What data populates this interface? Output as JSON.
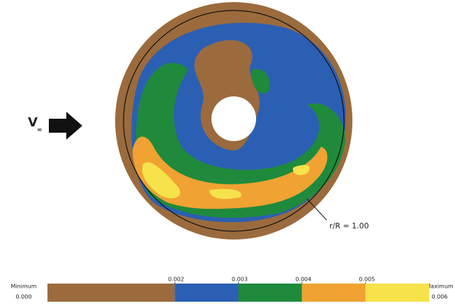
{
  "chart_data": {
    "type": "colorbar",
    "freestream_label": "V",
    "freestream_subscript": "∞",
    "annotation": "r/R = 1.00",
    "min_title": "Minimum",
    "max_title": "Maximum",
    "xlim": [
      {
        "value": 0,
        "label": "0.000"
      },
      0.006
    ],
    "xticks": [
      0.002,
      0.003,
      0.004,
      0.005
    ],
    "levels": [
      0,
      0.002,
      0.003,
      0.004,
      0.005,
      0.006
    ],
    "colors": [
      "#9b6b3d",
      "#2b5fb3",
      "#1f8a3c",
      "#f0a232",
      "#f6e24a"
    ]
  }
}
